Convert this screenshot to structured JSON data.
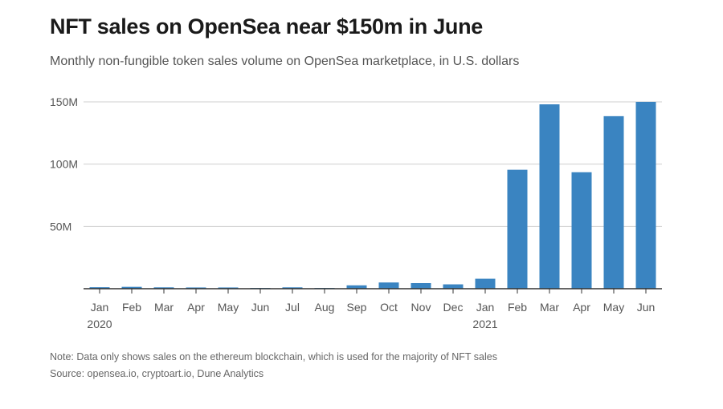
{
  "title": "NFT sales on OpenSea near $150m in June",
  "subtitle": "Monthly non-fungible token sales volume on OpenSea marketplace, in U.S. dollars",
  "note": "Note: Data only shows sales on the ethereum blockchain, which is used for the majority of NFT sales",
  "source": "Source: opensea.io, cryptoart.io, Dune Analytics",
  "chart_data": {
    "type": "bar",
    "categories": [
      "Jan",
      "Feb",
      "Mar",
      "Apr",
      "May",
      "Jun",
      "Jul",
      "Aug",
      "Sep",
      "Oct",
      "Nov",
      "Dec",
      "Jan",
      "Feb",
      "Mar",
      "Apr",
      "May",
      "Jun"
    ],
    "year_labels": [
      "2020",
      "",
      "",
      "",
      "",
      "",
      "",
      "",
      "",
      "",
      "",
      "",
      "2021",
      "",
      "",
      "",
      "",
      ""
    ],
    "values": [
      1.2,
      1.5,
      1.1,
      1.0,
      1.0,
      0.6,
      1.1,
      0.6,
      2.7,
      5.0,
      4.5,
      3.5,
      8.0,
      95.5,
      148.0,
      93.5,
      138.5,
      150.0
    ],
    "unit": "millions USD",
    "ylim": [
      0,
      150
    ],
    "yticks": [
      50,
      100,
      150
    ],
    "ytick_labels": [
      "50M",
      "100M",
      "150M"
    ],
    "grid": true,
    "bar_color": "#3a84c1",
    "xlabel": "",
    "ylabel": ""
  }
}
